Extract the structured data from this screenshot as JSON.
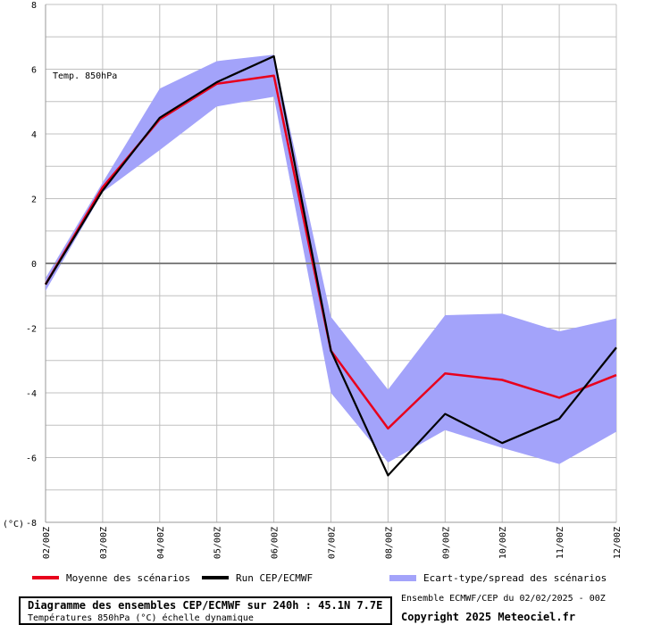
{
  "colors": {
    "mean": "#e8001c",
    "run": "#000000",
    "spread": "#a3a3fa",
    "grid": "#c0c0c0",
    "zero_line": "#808080"
  },
  "chart_data": {
    "type": "line",
    "title": "Temp. 850hPa",
    "unit_label": "(°C)",
    "x": [
      "02/00Z",
      "03/00Z",
      "04/00Z",
      "05/00Z",
      "06/00Z",
      "07/00Z",
      "08/00Z",
      "09/00Z",
      "10/00Z",
      "11/00Z",
      "12/00Z"
    ],
    "ylim": [
      -8,
      8
    ],
    "yticks": [
      8,
      6,
      4,
      2,
      0,
      -2,
      -4,
      -6,
      -8
    ],
    "grid": true,
    "legend_position": "bottom",
    "series": [
      {
        "name": "Moyenne des scénarios",
        "kind": "line",
        "values": [
          -0.65,
          2.35,
          4.45,
          5.55,
          5.8,
          -2.7,
          -5.1,
          -3.4,
          -3.6,
          -4.15,
          -3.45
        ]
      },
      {
        "name": "Run CEP/ECMWF",
        "kind": "line",
        "values": [
          -0.65,
          2.25,
          4.5,
          5.6,
          6.4,
          -2.7,
          -6.55,
          -4.65,
          -5.55,
          -4.8,
          -2.6
        ]
      },
      {
        "name": "Ecart-type/spread des scénarios",
        "kind": "band",
        "upper": [
          -0.45,
          2.5,
          5.4,
          6.25,
          6.45,
          -1.65,
          -3.9,
          -1.6,
          -1.55,
          -2.1,
          -1.7
        ],
        "lower": [
          -0.85,
          2.2,
          3.5,
          4.85,
          5.15,
          -4.0,
          -6.15,
          -5.15,
          -5.7,
          -6.2,
          -5.2
        ]
      }
    ]
  },
  "footer": {
    "caption_title": "Diagramme des ensembles CEP/ECMWF sur 240h : 45.1N 7.7E",
    "caption_subtitle": "Températures 850hPa (°C) échelle dynamique",
    "source": "Ensemble ECMWF/CEP du 02/02/2025 - 00Z",
    "copyright": "Copyright 2025 Meteociel.fr"
  }
}
